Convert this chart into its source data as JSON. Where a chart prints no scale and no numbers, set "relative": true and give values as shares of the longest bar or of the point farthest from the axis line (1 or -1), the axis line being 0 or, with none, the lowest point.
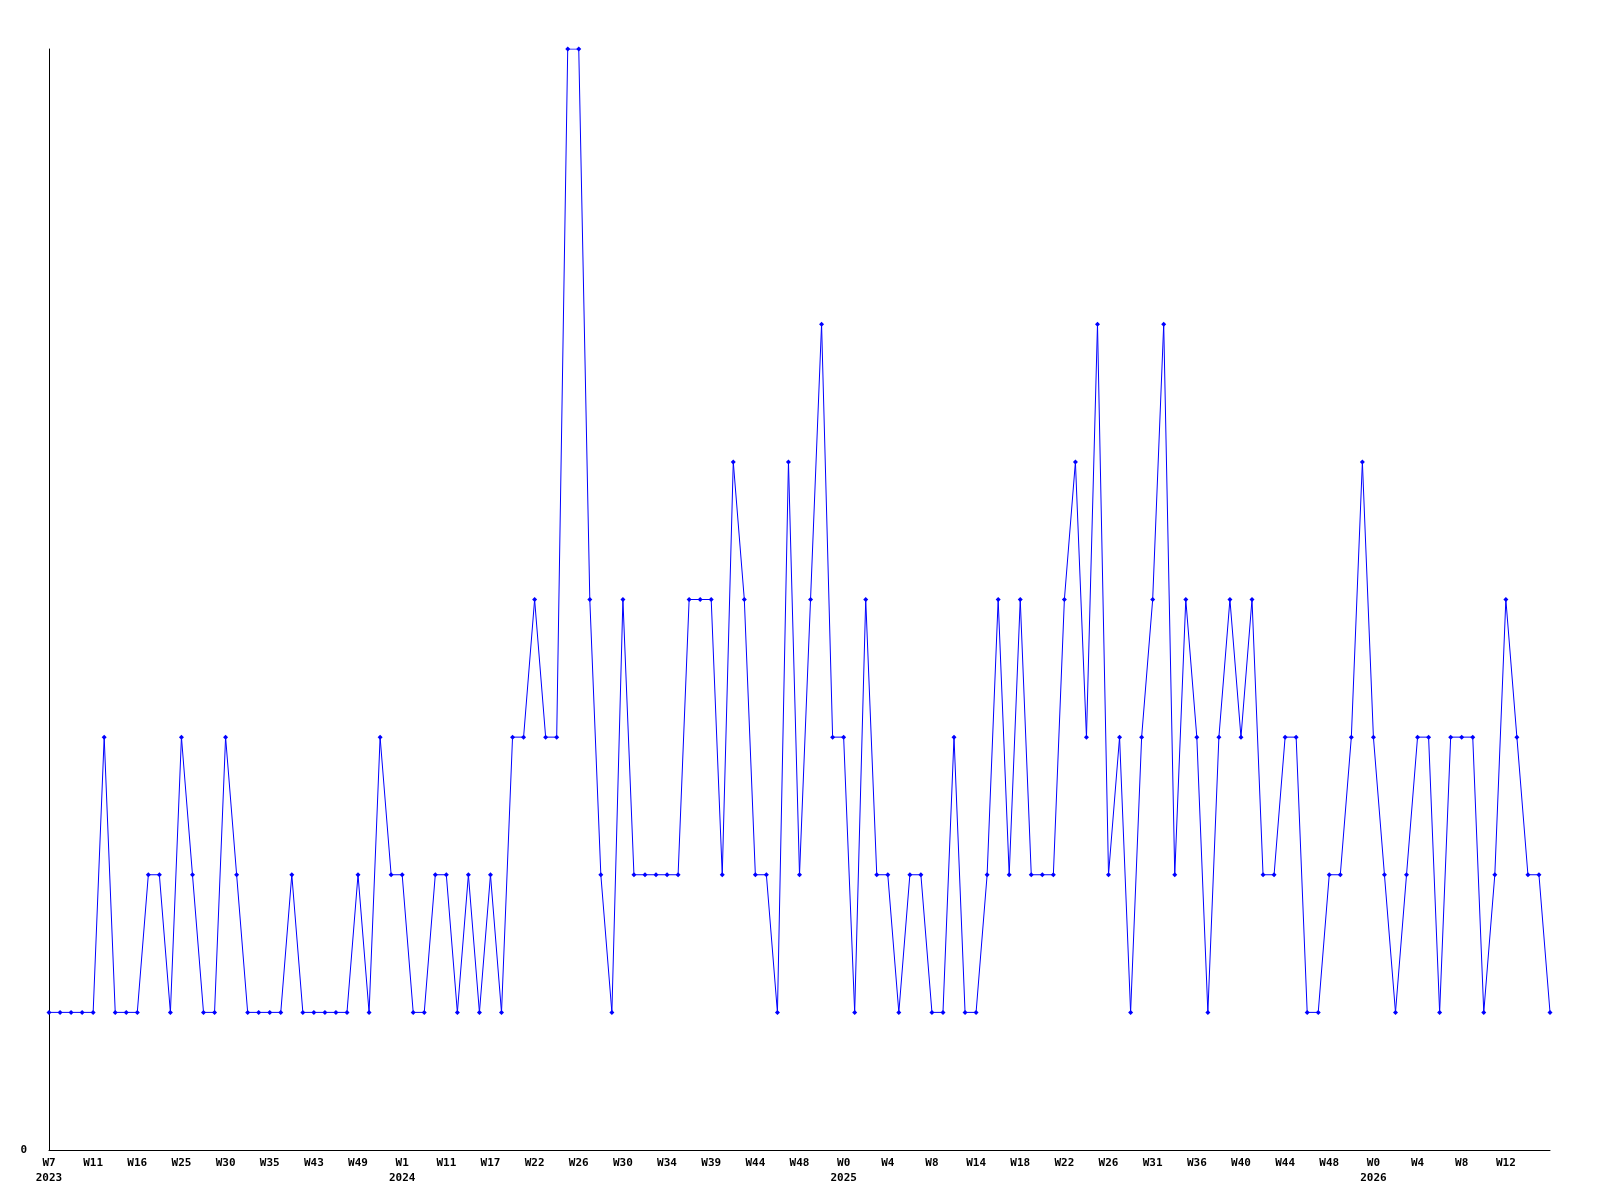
{
  "chart_data": {
    "type": "line",
    "relative": true,
    "marker": "diamond",
    "line_style": "solid",
    "grid": false,
    "annotations": [
      "0"
    ],
    "categories": [
      "W7\n2023",
      null,
      null,
      null,
      "W11",
      null,
      null,
      null,
      "W16",
      null,
      null,
      null,
      "W25",
      null,
      null,
      null,
      "W30",
      null,
      null,
      null,
      "W35",
      null,
      null,
      null,
      "W43",
      null,
      null,
      null,
      "W49",
      null,
      null,
      null,
      "W1\n2024",
      null,
      null,
      null,
      "W11",
      null,
      null,
      null,
      "W17",
      null,
      null,
      null,
      "W22",
      null,
      null,
      null,
      "W26",
      null,
      null,
      null,
      "W30",
      null,
      null,
      null,
      "W34",
      null,
      null,
      null,
      "W39",
      null,
      null,
      null,
      "W44",
      null,
      null,
      null,
      "W48",
      null,
      null,
      null,
      "W0\n2025",
      null,
      null,
      null,
      "W4",
      null,
      null,
      null,
      "W8",
      null,
      null,
      null,
      "W14",
      null,
      null,
      null,
      "W18",
      null,
      null,
      null,
      "W22",
      null,
      null,
      null,
      "W26",
      null,
      null,
      null,
      "W31",
      null,
      null,
      null,
      "W36",
      null,
      null,
      null,
      "W40",
      null,
      null,
      null,
      "W44",
      null,
      null,
      null,
      "W48",
      null,
      null,
      null,
      "W0\n2026",
      null,
      null,
      null,
      "W4",
      null,
      null,
      null,
      "W8",
      null,
      null,
      null,
      "W12",
      null,
      null,
      null,
      null
    ],
    "series": [
      {
        "color": "#0000ff",
        "values": [
          0.125,
          0.125,
          0.125,
          0.125,
          0.125,
          0.375,
          0.125,
          0.125,
          0.125,
          0.25,
          0.25,
          0.125,
          0.375,
          0.25,
          0.125,
          0.125,
          0.375,
          0.25,
          0.125,
          0.125,
          0.125,
          0.125,
          0.25,
          0.125,
          0.125,
          0.125,
          0.125,
          0.125,
          0.25,
          0.125,
          0.375,
          0.25,
          0.25,
          0.125,
          0.125,
          0.25,
          0.25,
          0.125,
          0.25,
          0.125,
          0.25,
          0.125,
          0.375,
          0.375,
          0.5,
          0.375,
          0.375,
          1,
          1,
          0.5,
          0.25,
          0.125,
          0.5,
          0.25,
          0.25,
          0.25,
          0.25,
          0.25,
          0.5,
          0.5,
          0.5,
          0.25,
          0.625,
          0.5,
          0.25,
          0.25,
          0.125,
          0.625,
          0.25,
          0.5,
          0.75,
          0.375,
          0.375,
          0.125,
          0.5,
          0.25,
          0.25,
          0.125,
          0.25,
          0.25,
          0.125,
          0.125,
          0.375,
          0.125,
          0.125,
          0.25,
          0.5,
          0.25,
          0.5,
          0.25,
          0.25,
          0.25,
          0.5,
          0.625,
          0.375,
          0.75,
          0.25,
          0.375,
          0.125,
          0.375,
          0.5,
          0.75,
          0.25,
          0.5,
          0.375,
          0.125,
          0.375,
          0.5,
          0.375,
          0.5,
          0.25,
          0.25,
          0.375,
          0.375,
          0.125,
          0.125,
          0.25,
          0.25,
          0.375,
          0.625,
          0.375,
          0.25,
          0.125,
          0.25,
          0.375,
          0.375,
          0.125,
          0.375,
          0.375,
          0.375,
          0.125,
          0.25,
          0.5,
          0.375,
          0.25,
          0.25,
          0.125
        ]
      }
    ]
  }
}
